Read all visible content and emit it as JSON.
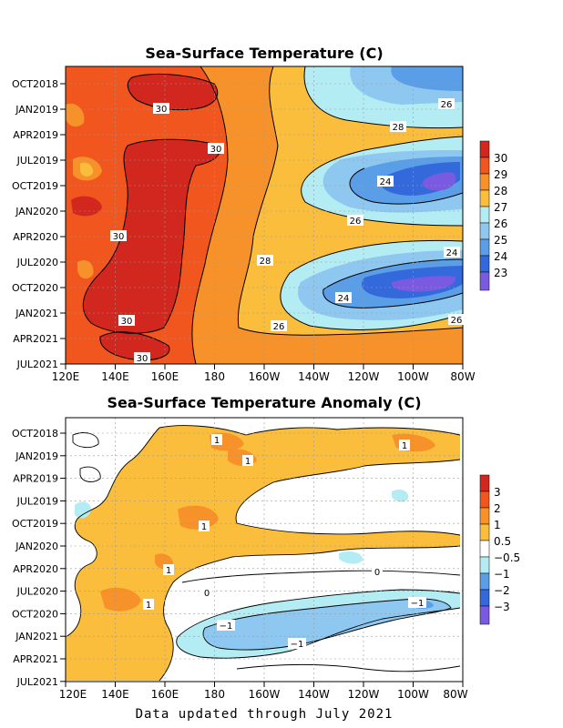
{
  "footer": "Data updated through July 2021",
  "chart_data": [
    {
      "type": "heatmap",
      "title": "Sea-Surface Temperature (C)",
      "x_ticks": [
        "120E",
        "140E",
        "160E",
        "180",
        "160W",
        "140W",
        "120W",
        "100W",
        "80W"
      ],
      "y_ticks": [
        "OCT2018",
        "JAN2019",
        "APR2019",
        "JUL2019",
        "OCT2019",
        "JAN2020",
        "APR2020",
        "JUL2020",
        "OCT2020",
        "JAN2021",
        "APR2021",
        "JUL2021"
      ],
      "grid": true,
      "colorbar": {
        "levels": [
          "30",
          "29",
          "28",
          "27",
          "26",
          "25",
          "24",
          "23"
        ],
        "colors": [
          "#d2271e",
          "#f0561e",
          "#f7922a",
          "#fbbe3c",
          "#b4ecf4",
          "#8ec7f0",
          "#5a9ee8",
          "#3469dc",
          "#7a5ae0"
        ]
      },
      "contour_labels": [
        "30",
        "30",
        "30",
        "30",
        "30",
        "30",
        "28",
        "28",
        "26",
        "26",
        "26",
        "26",
        "24",
        "24",
        "24"
      ]
    },
    {
      "type": "heatmap",
      "title": "Sea-Surface Temperature Anomaly (C)",
      "x_ticks": [
        "120E",
        "140E",
        "160E",
        "180",
        "160W",
        "140W",
        "120W",
        "100W",
        "80W"
      ],
      "y_ticks": [
        "OCT2018",
        "JAN2019",
        "APR2019",
        "JUL2019",
        "OCT2019",
        "JAN2020",
        "APR2020",
        "JUL2020",
        "OCT2020",
        "JAN2021",
        "APR2021",
        "JUL2021"
      ],
      "grid": true,
      "colorbar": {
        "levels": [
          "3",
          "2",
          "1",
          "0.5",
          "−0.5",
          "−1",
          "−2",
          "−3"
        ],
        "colors": [
          "#d2271e",
          "#f0561e",
          "#f7922a",
          "#fbbe3c",
          "#ffffff",
          "#b4ecf4",
          "#5a9ee8",
          "#3469dc",
          "#7a5ae0"
        ]
      },
      "contour_labels": [
        "1",
        "1",
        "1",
        "1",
        "1",
        "1",
        "1",
        "0",
        "0",
        "−1",
        "−1",
        "−1"
      ]
    }
  ]
}
